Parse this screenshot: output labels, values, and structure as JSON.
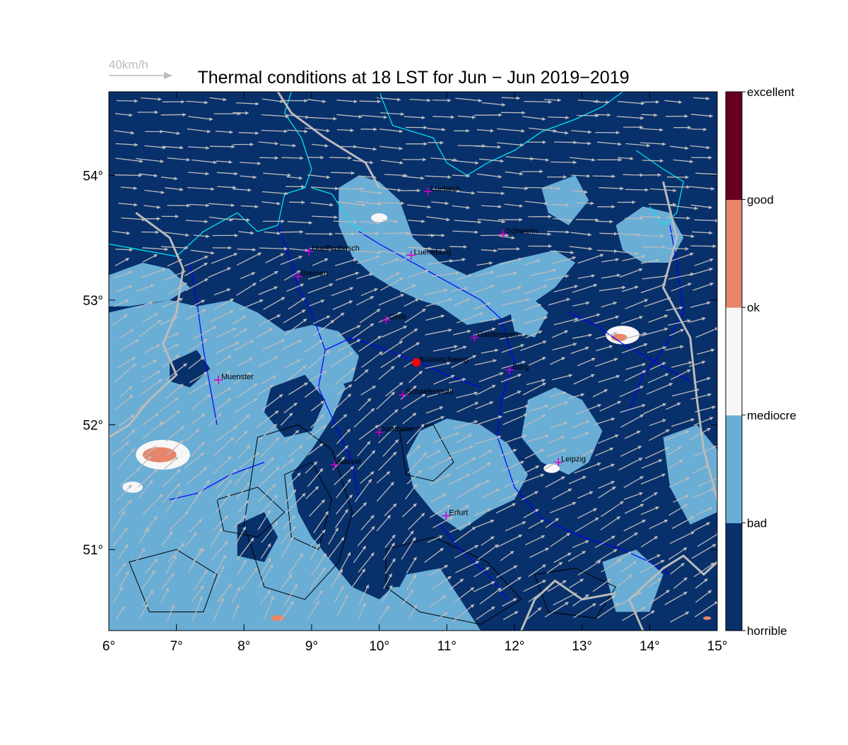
{
  "title": "Thermal conditions at 18 LST for Jun − Jun  2019−2019",
  "wind_reference": {
    "label": "40km/h",
    "color": "#bbbbbb"
  },
  "x_axis": {
    "range": [
      6,
      15
    ],
    "ticks": [
      {
        "value": 6,
        "label": "6°"
      },
      {
        "value": 7,
        "label": "7°"
      },
      {
        "value": 8,
        "label": "8°"
      },
      {
        "value": 9,
        "label": "9°"
      },
      {
        "value": 10,
        "label": "10°"
      },
      {
        "value": 11,
        "label": "11°"
      },
      {
        "value": 12,
        "label": "12°"
      },
      {
        "value": 13,
        "label": "13°"
      },
      {
        "value": 14,
        "label": "14°"
      },
      {
        "value": 15,
        "label": "15°"
      }
    ]
  },
  "y_axis": {
    "range": [
      50.35,
      54.67
    ],
    "ticks": [
      {
        "value": 51,
        "label": "51°"
      },
      {
        "value": 52,
        "label": "52°"
      },
      {
        "value": 53,
        "label": "53°"
      },
      {
        "value": 54,
        "label": "54°"
      }
    ]
  },
  "colorbar": {
    "classes": [
      {
        "label": "horrible",
        "color": "#08306b"
      },
      {
        "label": "bad",
        "color": "#08306b"
      },
      {
        "label": "mediocre",
        "color": "#6aaed6"
      },
      {
        "label": "ok",
        "color": "#f7f7f7"
      },
      {
        "label": "good",
        "color": "#e6856a"
      },
      {
        "label": "excellent",
        "color": "#67001f"
      }
    ],
    "labels": [
      "horrible",
      "bad",
      "mediocre",
      "ok",
      "good",
      "excellent"
    ]
  },
  "colors": {
    "horrible": "#08306b",
    "mediocre": "#6aaed6",
    "ok": "#f7f7f7",
    "good": "#e6856a",
    "excellent": "#67001f",
    "coast": "#00e5ee",
    "rivers": "#0000ff",
    "borders": "#bbbbbb",
    "terrain": "#000000",
    "city_marker": "#cc00cc",
    "home_marker": "#ff0000"
  },
  "home_location": {
    "name": "Braunschweig",
    "lon": 10.55,
    "lat": 52.5
  },
  "cities": [
    {
      "name": "Luebeck",
      "lon": 10.72,
      "lat": 53.87
    },
    {
      "name": "Schwerin",
      "lon": 11.83,
      "lat": 53.53
    },
    {
      "name": "Hueffenbusch",
      "lon": 8.96,
      "lat": 53.39
    },
    {
      "name": "Lueneburg",
      "lon": 10.47,
      "lat": 53.36
    },
    {
      "name": "Bremen",
      "lon": 8.8,
      "lat": 53.19
    },
    {
      "name": "Celle",
      "lon": 10.1,
      "lat": 52.84
    },
    {
      "name": "Gardelegen",
      "lon": 11.41,
      "lat": 52.7
    },
    {
      "name": "Braunschweig",
      "lon": 10.55,
      "lat": 52.5
    },
    {
      "name": "Burg",
      "lon": 11.93,
      "lat": 52.44
    },
    {
      "name": "Muenster",
      "lon": 7.62,
      "lat": 52.36
    },
    {
      "name": "Schaeferstuhl",
      "lon": 10.35,
      "lat": 52.24
    },
    {
      "name": "Northeim",
      "lon": 10.0,
      "lat": 51.94
    },
    {
      "name": "Kassel",
      "lon": 9.34,
      "lat": 51.68
    },
    {
      "name": "Leipzig",
      "lon": 12.65,
      "lat": 51.7
    },
    {
      "name": "Erfurt",
      "lon": 10.99,
      "lat": 51.27
    }
  ],
  "hotspots": [
    {
      "category": "good",
      "lon": 13.55,
      "lat": 52.7,
      "size": 0.12
    },
    {
      "category": "good",
      "lon": 6.75,
      "lat": 51.76,
      "size": 0.25
    },
    {
      "category": "good",
      "lon": 8.5,
      "lat": 50.45,
      "size": 0.1
    },
    {
      "category": "good",
      "lon": 14.85,
      "lat": 50.45,
      "size": 0.06
    },
    {
      "category": "ok",
      "lon": 10.0,
      "lat": 53.66,
      "size": 0.12
    },
    {
      "category": "ok",
      "lon": 13.6,
      "lat": 52.72,
      "size": 0.25
    },
    {
      "category": "ok",
      "lon": 6.8,
      "lat": 51.76,
      "size": 0.4
    },
    {
      "category": "ok",
      "lon": 12.55,
      "lat": 51.65,
      "size": 0.12
    },
    {
      "category": "ok",
      "lon": 6.35,
      "lat": 51.5,
      "size": 0.15
    }
  ]
}
